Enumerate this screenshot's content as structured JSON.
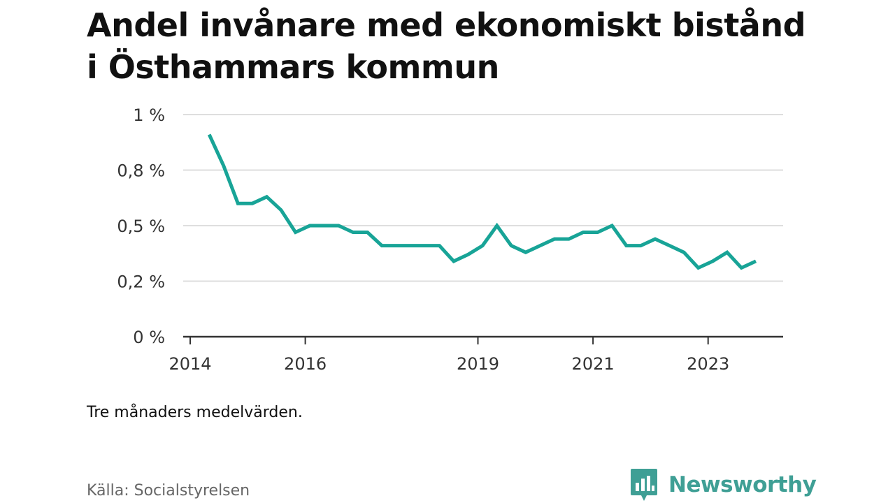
{
  "header": {
    "title": "Andel invånare med ekonomiskt bistånd i Östhammars kommun"
  },
  "footer": {
    "note": "Tre månaders medelvärden.",
    "source": "Källa: Socialstyrelsen",
    "brand": "Newsworthy"
  },
  "colors": {
    "line": "#18a497",
    "grid": "#dedede",
    "axis": "#333333",
    "brand": "#3f9f95"
  },
  "icons": {
    "brand_logo": "bar-chart-speech-bubble-icon"
  },
  "chart_data": {
    "type": "line",
    "title": "Andel invånare med ekonomiskt bistånd i Östhammars kommun",
    "xlabel": "",
    "ylabel": "",
    "xlim": [
      2014.0,
      2024.25
    ],
    "ylim": [
      0,
      1
    ],
    "y_ticks": [
      {
        "value": 0,
        "label": "0 %"
      },
      {
        "value": 0.25,
        "label": "0,2 %"
      },
      {
        "value": 0.5,
        "label": "0,5 %"
      },
      {
        "value": 0.75,
        "label": "0,8 %"
      },
      {
        "value": 1,
        "label": "1 %"
      }
    ],
    "x_ticks": [
      {
        "value": 2014,
        "label": "2014"
      },
      {
        "value": 2016,
        "label": "2016"
      },
      {
        "value": 2019,
        "label": "2019"
      },
      {
        "value": 2021,
        "label": "2021"
      },
      {
        "value": 2023,
        "label": "2023"
      }
    ],
    "grid": true,
    "series": [
      {
        "x": [
          2014.33,
          2014.58,
          2014.83,
          2015.08,
          2015.33,
          2015.58,
          2015.83,
          2016.08,
          2016.33,
          2016.58,
          2016.83,
          2017.08,
          2017.33,
          2017.58,
          2017.83,
          2018.08,
          2018.33,
          2018.58,
          2018.83,
          2019.08,
          2019.33,
          2019.58,
          2019.83,
          2020.08,
          2020.33,
          2020.58,
          2020.83,
          2021.08,
          2021.33,
          2021.58,
          2021.83,
          2022.08,
          2022.33,
          2022.58,
          2022.83,
          2023.08,
          2023.33,
          2023.58,
          2023.83
        ],
        "values": [
          0.91,
          0.77,
          0.6,
          0.6,
          0.63,
          0.57,
          0.47,
          0.5,
          0.5,
          0.5,
          0.47,
          0.47,
          0.41,
          0.41,
          0.41,
          0.41,
          0.41,
          0.34,
          0.37,
          0.41,
          0.5,
          0.41,
          0.38,
          0.41,
          0.44,
          0.44,
          0.47,
          0.47,
          0.5,
          0.41,
          0.41,
          0.44,
          0.41,
          0.38,
          0.31,
          0.34,
          0.38,
          0.31,
          0.34
        ]
      }
    ]
  }
}
